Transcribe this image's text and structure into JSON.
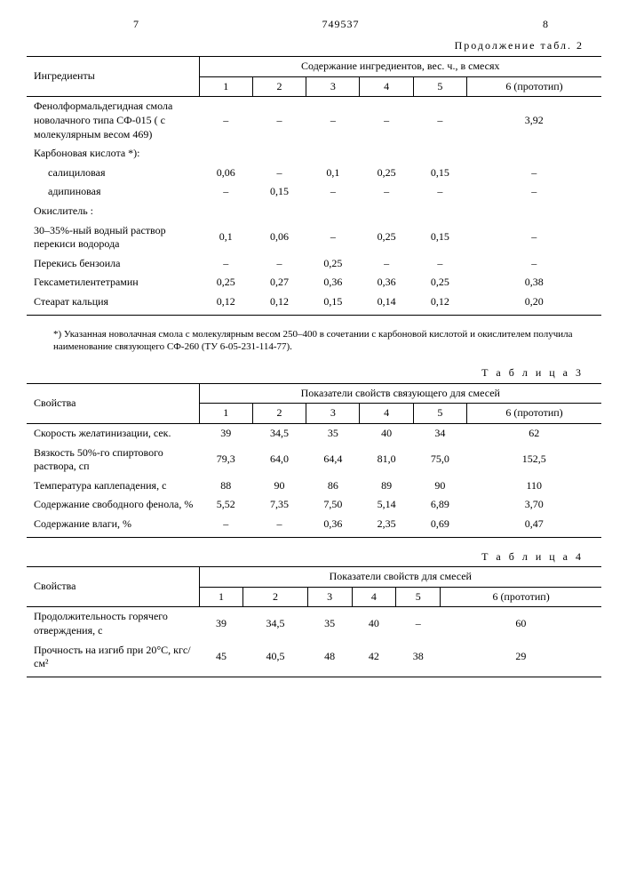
{
  "header": {
    "left_col": "7",
    "doc_number": "749537",
    "right_col": "8"
  },
  "table2": {
    "continuation": "Продолжение табл. 2",
    "col_label": "Ингредиенты",
    "group_label": "Содержание ингредиентов, вес. ч., в смесях",
    "cols": [
      "1",
      "2",
      "3",
      "4",
      "5",
      "6 (прототип)"
    ],
    "rows": [
      {
        "label": "Фенолформальдегидная смола новолачного типа СФ-015 ( с молекулярным весом 469)",
        "v": [
          "–",
          "–",
          "–",
          "–",
          "–",
          "3,92"
        ]
      },
      {
        "label": "Карбоновая кислота *):",
        "v": [
          "",
          "",
          "",
          "",
          "",
          ""
        ]
      },
      {
        "label": "салициловая",
        "v": [
          "0,06",
          "–",
          "0,1",
          "0,25",
          "0,15",
          "–"
        ],
        "indent": true
      },
      {
        "label": "адипиновая",
        "v": [
          "–",
          "0,15",
          "–",
          "–",
          "–",
          "–"
        ],
        "indent": true
      },
      {
        "label": "Окислитель :",
        "v": [
          "",
          "",
          "",
          "",
          "",
          ""
        ]
      },
      {
        "label": "30–35%-ный водный раствор перекиси водорода",
        "v": [
          "0,1",
          "0,06",
          "–",
          "0,25",
          "0,15",
          "–"
        ]
      },
      {
        "label": "Перекись бензоила",
        "v": [
          "–",
          "–",
          "0,25",
          "–",
          "–",
          "–"
        ]
      },
      {
        "label": "Гексаметилентетрамин",
        "v": [
          "0,25",
          "0,27",
          "0,36",
          "0,36",
          "0,25",
          "0,38"
        ]
      },
      {
        "label": "Стеарат кальция",
        "v": [
          "0,12",
          "0,12",
          "0,15",
          "0,14",
          "0,12",
          "0,20"
        ]
      }
    ]
  },
  "footnote": "*) Указанная новолачная смола с молекулярным весом 250–400 в сочетании с карбоновой кислотой и окислителем получила наименование связующего СФ-260 (ТУ 6-05-231-114-77).",
  "table3": {
    "title": "Т а б л и ц а   3",
    "col_label": "Свойства",
    "group_label": "Показатели свойств связующего для смесей",
    "cols": [
      "1",
      "2",
      "3",
      "4",
      "5",
      "6 (прототип)"
    ],
    "rows": [
      {
        "label": "Скорость желатинизации, сек.",
        "v": [
          "39",
          "34,5",
          "35",
          "40",
          "34",
          "62"
        ]
      },
      {
        "label": "Вязкость 50%-го спиртового раствора, сп",
        "v": [
          "79,3",
          "64,0",
          "64,4",
          "81,0",
          "75,0",
          "152,5"
        ]
      },
      {
        "label": "Температура каплепадения, с",
        "v": [
          "88",
          "90",
          "86",
          "89",
          "90",
          "110"
        ]
      },
      {
        "label": "Содержание свободного фенола, %",
        "v": [
          "5,52",
          "7,35",
          "7,50",
          "5,14",
          "6,89",
          "3,70"
        ]
      },
      {
        "label": "Содержание влаги, %",
        "v": [
          "–",
          "–",
          "0,36",
          "2,35",
          "0,69",
          "0,47"
        ]
      }
    ]
  },
  "table4": {
    "title": "Т а б л и ц а   4",
    "col_label": "Свойства",
    "group_label": "Показатели свойств для смесей",
    "cols": [
      "1",
      "2",
      "3",
      "4",
      "5",
      "6 (прототип)"
    ],
    "rows": [
      {
        "label": "Продолжительность горячего отверждения, с",
        "v": [
          "39",
          "34,5",
          "35",
          "40",
          "–",
          "60"
        ]
      },
      {
        "label": "Прочность на изгиб при 20°С, кгс/см²",
        "v": [
          "45",
          "40,5",
          "48",
          "42",
          "38",
          "29"
        ]
      }
    ]
  }
}
